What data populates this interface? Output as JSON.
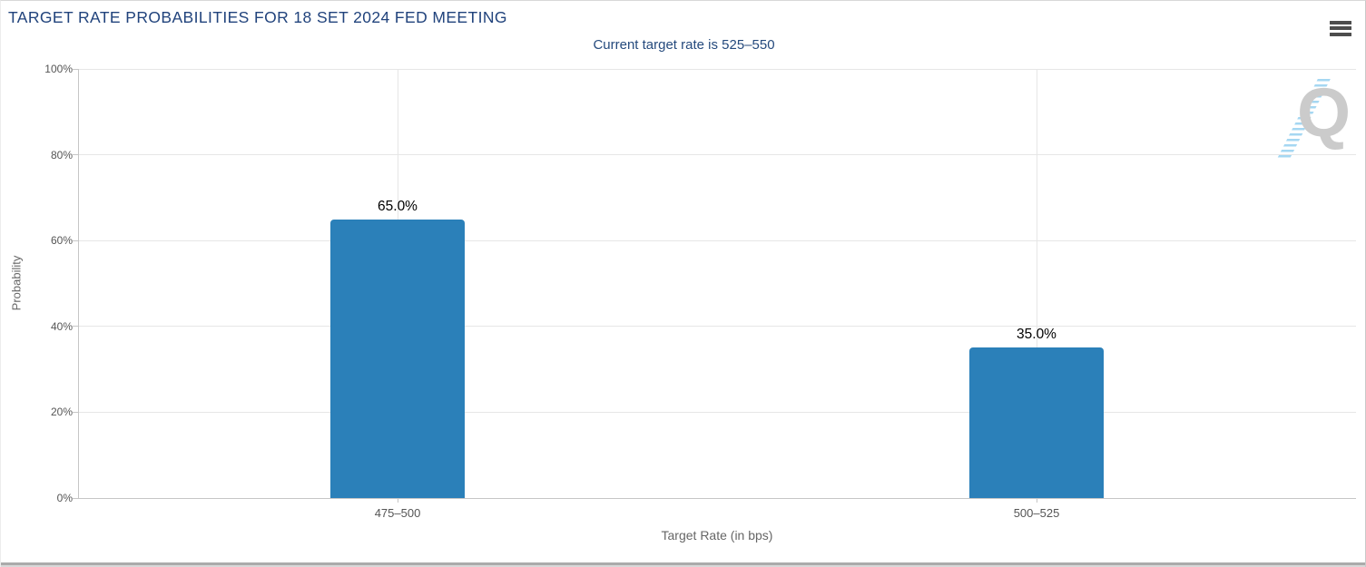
{
  "header": {
    "title": "TARGET RATE PROBABILITIES FOR 18 SET 2024 FED MEETING",
    "subtitle": "Current target rate is 525–550",
    "menu_icon": "hamburger-menu-icon"
  },
  "chart_data": {
    "type": "bar",
    "title": "TARGET RATE PROBABILITIES FOR 18 SET 2024 FED MEETING",
    "subtitle": "Current target rate is 525–550",
    "categories": [
      "475–500",
      "500–525"
    ],
    "values": [
      65.0,
      35.0
    ],
    "value_labels": [
      "65.0%",
      "35.0%"
    ],
    "xlabel": "Target Rate (in bps)",
    "ylabel": "Probability",
    "ylim": [
      0,
      100
    ],
    "ytick_labels": [
      "0%",
      "20%",
      "40%",
      "60%",
      "80%",
      "100%"
    ],
    "grid": true,
    "legend": "none",
    "bar_color": "#2b80b9",
    "watermark_letter": "Q"
  },
  "colors": {
    "title": "#21437c",
    "subtitle": "#254a7d",
    "bar": "#2b80b9",
    "gridline": "#e6e6e6",
    "axis_line": "#c6c6c6",
    "tick_label": "#555555",
    "axis_title": "#666666",
    "watermark_q": "#cbcbcb",
    "watermark_dashes": "#a5d7f2"
  }
}
